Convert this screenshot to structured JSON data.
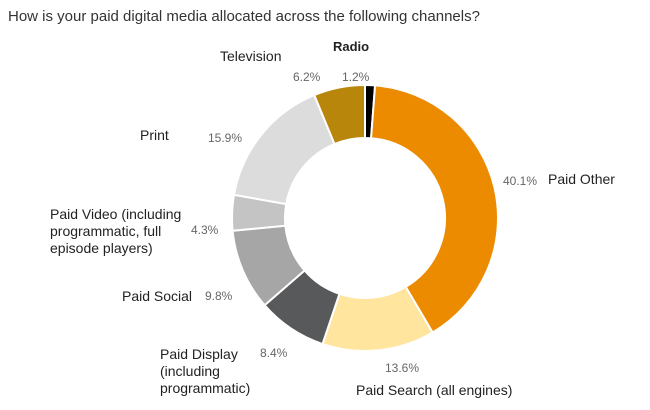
{
  "title": "How is your paid digital media allocated across the following channels?",
  "chart_data": {
    "type": "pie",
    "donut": true,
    "title": "How is your paid digital media allocated across the following channels?",
    "slices": [
      {
        "label": "Radio",
        "value": 1.2,
        "value_label": "1.2%",
        "color": "#000000"
      },
      {
        "label": "Paid Other",
        "value": 40.1,
        "value_label": "40.1%",
        "color": "#ED8B00"
      },
      {
        "label": "Paid Search (all engines)",
        "value": 13.6,
        "value_label": "13.6%",
        "color": "#FFE59E"
      },
      {
        "label": "Paid Display (including programmatic)",
        "value": 8.4,
        "value_label": "8.4%",
        "color": "#58595B"
      },
      {
        "label": "Paid Social",
        "value": 9.8,
        "value_label": "9.8%",
        "color": "#A6A6A6"
      },
      {
        "label": "Paid Video (including programmatic, full episode players)",
        "value": 4.3,
        "value_label": "4.3%",
        "color": "#C4C4C4"
      },
      {
        "label": "Print",
        "value": 15.9,
        "value_label": "15.9%",
        "color": "#DCDCDC"
      },
      {
        "label": "Television",
        "value": 6.2,
        "value_label": "6.2%",
        "color": "#B8860B"
      }
    ]
  }
}
